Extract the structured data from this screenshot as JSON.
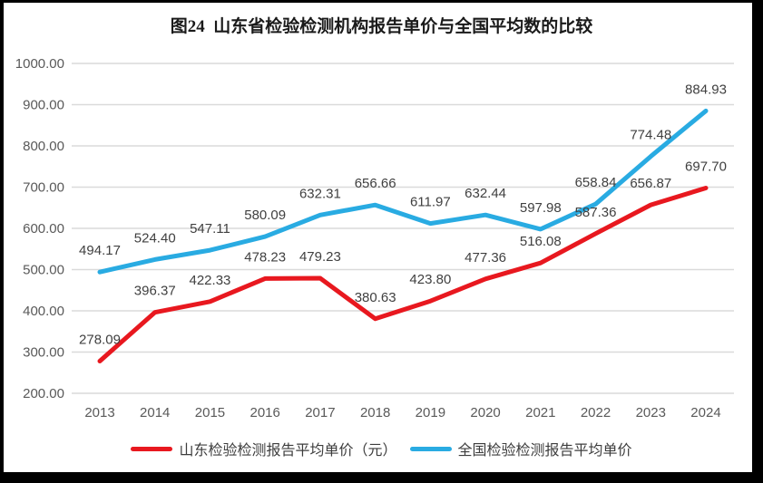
{
  "frame": {
    "color": "#000000",
    "background": "#ffffff"
  },
  "chart_data": {
    "type": "line",
    "title": "图24  山东省检验检测机构报告单价与全国平均数的比较",
    "categories": [
      "2013",
      "2014",
      "2015",
      "2016",
      "2017",
      "2018",
      "2019",
      "2020",
      "2021",
      "2022",
      "2023",
      "2024"
    ],
    "series": [
      {
        "name": "山东检验检测报告平均单价（元）",
        "color": "#e8181f",
        "values": [
          278.09,
          396.37,
          422.33,
          478.23,
          479.23,
          380.63,
          423.8,
          477.36,
          516.08,
          587.36,
          656.87,
          697.7
        ]
      },
      {
        "name": "全国检验检测报告平均单价",
        "color": "#29abe2",
        "values": [
          494.17,
          524.4,
          547.11,
          580.09,
          632.31,
          656.66,
          611.97,
          632.44,
          597.98,
          658.84,
          774.48,
          884.93
        ]
      }
    ],
    "ylim": [
      200,
      1000
    ],
    "ytick_step": 100,
    "ytick_labels": [
      "200.00",
      "300.00",
      "400.00",
      "500.00",
      "600.00",
      "700.00",
      "800.00",
      "900.00",
      "1000.00"
    ],
    "grid": "horizontal",
    "legend_position": "bottom",
    "value_labels": true,
    "colors": {
      "gridline": "#dadada",
      "axis_text": "#595959",
      "label_text": "#404040",
      "title_text": "#1a1a1a"
    }
  }
}
